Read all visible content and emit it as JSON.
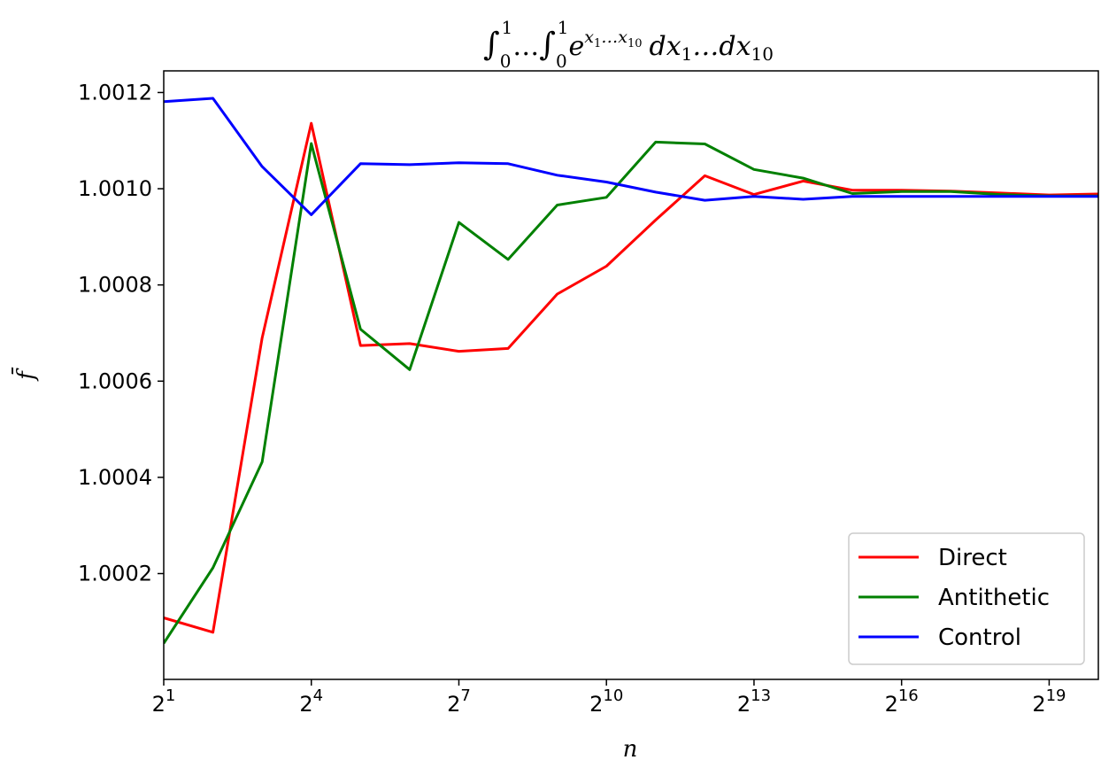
{
  "chart_data": {
    "type": "line",
    "title": "∫₀¹…∫₀¹ e^(x₁…x₁₀) dx₁…dx₁₀",
    "title_parts": {
      "int": "∫",
      "lower": "0",
      "upper": "1",
      "dots": "…",
      "base": "e",
      "exp": "x",
      "exp_sub1": "1",
      "exp_dots": "…x",
      "exp_sub2": "10",
      "dx": "dx",
      "dx_sub1": "1",
      "dx_dots": "…dx",
      "dx_sub2": "10"
    },
    "xlabel": "n",
    "ylabel": "f̄",
    "x_scale": "log2",
    "x_exponents": [
      1,
      2,
      3,
      4,
      5,
      6,
      7,
      8,
      9,
      10,
      11,
      12,
      13,
      14,
      15,
      16,
      17,
      18,
      19,
      20
    ],
    "xlim_exponent": [
      1,
      20
    ],
    "x_ticks": [
      {
        "base": "2",
        "exp": "1",
        "e": 1
      },
      {
        "base": "2",
        "exp": "4",
        "e": 4
      },
      {
        "base": "2",
        "exp": "7",
        "e": 7
      },
      {
        "base": "2",
        "exp": "10",
        "e": 10
      },
      {
        "base": "2",
        "exp": "13",
        "e": 13
      },
      {
        "base": "2",
        "exp": "16",
        "e": 16
      },
      {
        "base": "2",
        "exp": "19",
        "e": 19
      }
    ],
    "ylim": [
      0.99998,
      1.001245
    ],
    "y_ticks": [
      {
        "value": 1.0002,
        "label": "1.0002"
      },
      {
        "value": 1.0004,
        "label": "1.0004"
      },
      {
        "value": 1.0006,
        "label": "1.0006"
      },
      {
        "value": 1.0008,
        "label": "1.0008"
      },
      {
        "value": 1.001,
        "label": "1.0010"
      },
      {
        "value": 1.0012,
        "label": "1.0012"
      }
    ],
    "grid": false,
    "legend_position": "lower-right",
    "series": [
      {
        "name": "Direct",
        "color": "#ff0000",
        "values": [
          1.000108,
          1.000078,
          1.00069,
          1.001136,
          1.000674,
          1.000678,
          1.000662,
          1.000668,
          1.000781,
          1.000839,
          1.000935,
          1.001027,
          1.000988,
          1.001016,
          1.000997,
          1.000997,
          1.000995,
          1.000991,
          1.000987,
          1.000989
        ]
      },
      {
        "name": "Antithetic",
        "color": "#008000",
        "values": [
          1.000055,
          1.000212,
          1.000432,
          1.001094,
          1.000708,
          1.000624,
          1.00093,
          1.000853,
          1.000966,
          1.000982,
          1.001097,
          1.001093,
          1.00104,
          1.001022,
          1.00099,
          1.000994,
          1.000994,
          1.000988,
          1.000985,
          1.000985
        ]
      },
      {
        "name": "Control",
        "color": "#0000ff",
        "values": [
          1.001181,
          1.001188,
          1.001046,
          1.000946,
          1.001052,
          1.00105,
          1.001054,
          1.001052,
          1.001028,
          1.001014,
          1.000993,
          1.000976,
          1.000984,
          1.000978,
          1.000984,
          1.000984,
          1.000984,
          1.000984,
          1.000984,
          1.000984
        ]
      }
    ]
  }
}
